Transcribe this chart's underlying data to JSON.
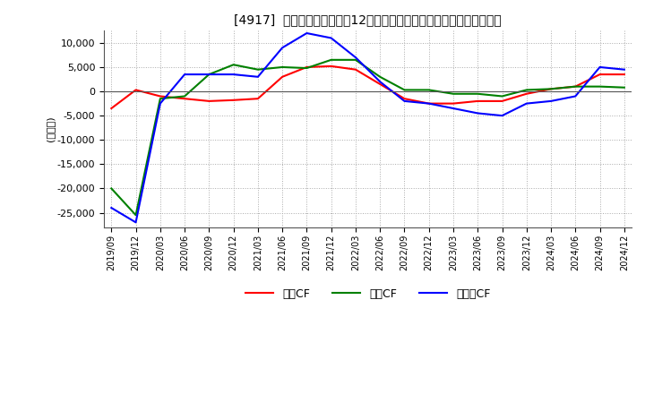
{
  "title": "[4917]  キャッシュフローの12か月移動合計の対前年同期増減額の推移",
  "ylabel": "(百万円)",
  "ylim": [
    -28000,
    12500
  ],
  "yticks": [
    10000,
    5000,
    0,
    -5000,
    -10000,
    -15000,
    -20000,
    -25000
  ],
  "legend": [
    "営業CF",
    "投賃CF",
    "フリーCF"
  ],
  "colors": {
    "operating": "#ff0000",
    "investing": "#008000",
    "free": "#0000ff"
  },
  "x_labels": [
    "2019/09",
    "2019/12",
    "2020/03",
    "2020/06",
    "2020/09",
    "2020/12",
    "2021/03",
    "2021/06",
    "2021/09",
    "2021/12",
    "2022/03",
    "2022/06",
    "2022/09",
    "2022/12",
    "2023/03",
    "2023/06",
    "2023/09",
    "2023/12",
    "2024/03",
    "2024/06",
    "2024/09",
    "2024/12"
  ],
  "operating_cf": [
    -3500,
    300,
    -1000,
    -1500,
    -2000,
    -1800,
    -1500,
    3000,
    5000,
    5200,
    4500,
    1500,
    -1500,
    -2500,
    -2500,
    -2000,
    -2000,
    -500,
    500,
    1000,
    3500,
    3500
  ],
  "investing_cf": [
    -20000,
    -25500,
    -1500,
    -1000,
    3500,
    5500,
    4500,
    5000,
    4800,
    6500,
    6500,
    3000,
    300,
    300,
    -500,
    -500,
    -1000,
    300,
    500,
    1000,
    1000,
    800
  ],
  "free_cf": [
    -24000,
    -27000,
    -2500,
    3500,
    3500,
    3500,
    3000,
    9000,
    12000,
    11000,
    7000,
    2000,
    -2000,
    -2500,
    -3500,
    -4500,
    -5000,
    -2500,
    -2000,
    -1000,
    5000,
    4500
  ]
}
